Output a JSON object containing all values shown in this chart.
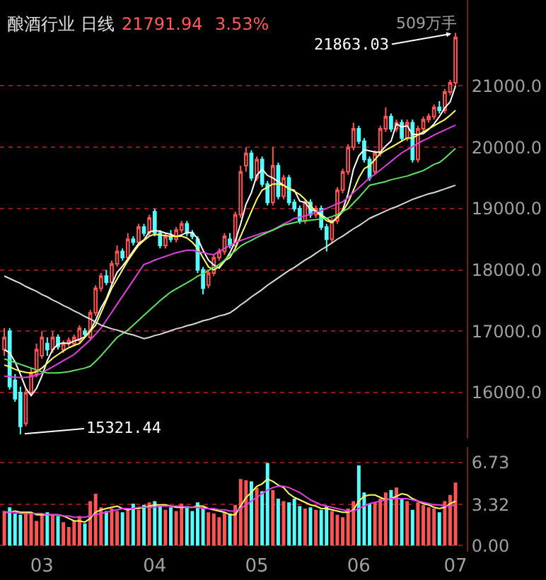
{
  "chart_data": [
    {
      "type": "candlestick",
      "title": "酿酒行业 日线",
      "annotations": [
        "21791.94",
        "3.53%",
        "509万手",
        "21863.03",
        "15321.44"
      ],
      "categories": [
        null,
        null,
        null,
        null,
        null,
        null,
        null,
        "03",
        null,
        null,
        null,
        null,
        null,
        null,
        null,
        null,
        null,
        null,
        null,
        null,
        null,
        null,
        null,
        null,
        null,
        null,
        null,
        null,
        "04",
        null,
        null,
        null,
        null,
        null,
        null,
        null,
        null,
        null,
        null,
        null,
        null,
        null,
        null,
        null,
        null,
        null,
        null,
        "05",
        null,
        null,
        null,
        null,
        null,
        null,
        null,
        null,
        null,
        null,
        null,
        null,
        null,
        null,
        null,
        null,
        null,
        null,
        "06",
        null,
        null,
        null,
        null,
        null,
        null,
        null,
        null,
        null,
        null,
        null,
        null,
        null,
        null,
        null,
        null,
        null,
        "07"
      ],
      "colors": [
        "#ff5454",
        "#54ffff",
        "#54ffff",
        "#54ffff",
        "#ff5454",
        "#ff5454",
        "#ff5454",
        "#ff5454",
        "#54ffff",
        "#ff5454",
        "#54ffff",
        "#ff5454",
        "#ff5454",
        "#ff5454",
        "#ff5454",
        "#54ffff",
        "#ff5454",
        "#ff5454",
        "#ff5454",
        "#54ffff",
        "#ff5454",
        "#ff5454",
        "#54ffff",
        "#ff5454",
        "#54ffff",
        "#ff5454",
        "#54ffff",
        "#ff5454",
        "#54ffff",
        "#54ffff",
        "#ff5454",
        "#54ffff",
        "#ff5454",
        "#ff5454",
        "#54ffff",
        "#54ffff",
        "#54ffff",
        "#54ffff",
        "#ff5454",
        "#ff5454",
        "#ff5454",
        "#ff5454",
        "#54ffff",
        "#ff5454",
        "#ff5454",
        "#ff5454",
        "#54ffff",
        "#ff5454",
        "#54ffff",
        "#54ffff",
        "#ff5454",
        "#54ffff",
        "#ff5454",
        "#54ffff",
        "#54ffff",
        "#54ffff",
        "#ff5454",
        "#54ffff",
        "#ff5454",
        "#54ffff",
        "#54ffff",
        "#ff5454",
        "#ff5454",
        "#ff5454",
        "#ff5454",
        "#ff5454",
        "#54ffff",
        "#54ffff",
        "#54ffff",
        "#ff5454",
        "#ff5454",
        "#ff5454",
        "#54ffff",
        "#ff5454",
        "#54ffff",
        "#ff5454",
        "#54ffff",
        "#ff5454",
        "#ff5454",
        "#ff5454",
        "#ff5454",
        "#54ffff",
        "#ff5454",
        "#ff5454",
        "#ff5454"
      ],
      "ohlc": [
        [
          16700,
          17050,
          16600,
          16900
        ],
        [
          17000,
          17050,
          16050,
          16100
        ],
        [
          16200,
          16300,
          15850,
          15900
        ],
        [
          16000,
          16100,
          15321.44,
          15450
        ],
        [
          15500,
          16050,
          15450,
          16000
        ],
        [
          16000,
          16400,
          15950,
          16300
        ],
        [
          16300,
          16800,
          16250,
          16700
        ],
        [
          16600,
          17000,
          16550,
          16900
        ],
        [
          16800,
          16900,
          16600,
          16700
        ],
        [
          16700,
          17000,
          16650,
          16900
        ],
        [
          16900,
          16950,
          16700,
          16750
        ],
        [
          16700,
          16850,
          16650,
          16800
        ],
        [
          16800,
          16900,
          16750,
          16850
        ],
        [
          16800,
          16950,
          16750,
          16900
        ],
        [
          16850,
          17100,
          16800,
          17050
        ],
        [
          17000,
          17050,
          16900,
          16950
        ],
        [
          16900,
          17350,
          16850,
          17300
        ],
        [
          17300,
          17750,
          17250,
          17700
        ],
        [
          17700,
          17950,
          17650,
          17900
        ],
        [
          17900,
          18000,
          17750,
          17800
        ],
        [
          17800,
          18150,
          17750,
          18100
        ],
        [
          18100,
          18400,
          18050,
          18300
        ],
        [
          18300,
          18350,
          18150,
          18200
        ],
        [
          18200,
          18600,
          18150,
          18500
        ],
        [
          18500,
          18550,
          18400,
          18450
        ],
        [
          18450,
          18750,
          18400,
          18700
        ],
        [
          18700,
          18750,
          18550,
          18600
        ],
        [
          18600,
          18900,
          18550,
          18850
        ],
        [
          18950,
          19000,
          18550,
          18600
        ],
        [
          18600,
          18650,
          18350,
          18400
        ],
        [
          18400,
          18600,
          18350,
          18550
        ],
        [
          18550,
          18650,
          18450,
          18500
        ],
        [
          18500,
          18700,
          18450,
          18650
        ],
        [
          18650,
          18800,
          18600,
          18750
        ],
        [
          18750,
          18800,
          18550,
          18600
        ],
        [
          18600,
          18650,
          18500,
          18550
        ],
        [
          18500,
          18550,
          17950,
          18000
        ],
        [
          18000,
          18050,
          17600,
          17700
        ],
        [
          17750,
          18000,
          17700,
          17950
        ],
        [
          17950,
          18250,
          17900,
          18200
        ],
        [
          18200,
          18350,
          18150,
          18300
        ],
        [
          18300,
          18600,
          18250,
          18550
        ],
        [
          18500,
          18600,
          18350,
          18400
        ],
        [
          18400,
          18950,
          18350,
          18900
        ],
        [
          18900,
          19700,
          18850,
          19600
        ],
        [
          19700,
          20000,
          19600,
          19900
        ],
        [
          19900,
          19950,
          19450,
          19500
        ],
        [
          19500,
          19850,
          19450,
          19800
        ],
        [
          19800,
          19850,
          19350,
          19400
        ],
        [
          19400,
          19450,
          19050,
          19100
        ],
        [
          19100,
          20000,
          19050,
          19700
        ],
        [
          19700,
          19750,
          19150,
          19200
        ],
        [
          19200,
          19550,
          19150,
          19500
        ],
        [
          19500,
          19550,
          19050,
          19100
        ],
        [
          19100,
          19150,
          18950,
          19000
        ],
        [
          19000,
          19050,
          18750,
          18800
        ],
        [
          18800,
          19150,
          18750,
          19100
        ],
        [
          19100,
          19150,
          18850,
          18900
        ],
        [
          18900,
          19050,
          18850,
          19000
        ],
        [
          19000,
          19050,
          18650,
          18700
        ],
        [
          18700,
          18750,
          18300,
          18500
        ],
        [
          18500,
          18850,
          18450,
          18800
        ],
        [
          18800,
          19350,
          18750,
          19300
        ],
        [
          19300,
          19650,
          19250,
          19600
        ],
        [
          19600,
          20050,
          19550,
          20000
        ],
        [
          20000,
          20400,
          19950,
          20300
        ],
        [
          20300,
          20350,
          20050,
          20100
        ],
        [
          20100,
          20150,
          19750,
          19800
        ],
        [
          19800,
          19850,
          19450,
          19500
        ],
        [
          19600,
          19950,
          19550,
          19900
        ],
        [
          19900,
          20350,
          19850,
          20300
        ],
        [
          20300,
          20650,
          20250,
          20500
        ],
        [
          20500,
          20550,
          20250,
          20300
        ],
        [
          20300,
          20450,
          20250,
          20400
        ],
        [
          20400,
          20450,
          20100,
          20150
        ],
        [
          20150,
          20450,
          20100,
          20400
        ],
        [
          20400,
          20450,
          19750,
          19800
        ],
        [
          19800,
          20350,
          19750,
          20300
        ],
        [
          20300,
          20500,
          20250,
          20450
        ],
        [
          20450,
          20550,
          20400,
          20500
        ],
        [
          20500,
          20700,
          20450,
          20650
        ],
        [
          20650,
          20750,
          20550,
          20600
        ],
        [
          20600,
          20950,
          20550,
          20900
        ],
        [
          20900,
          21100,
          20850,
          21050
        ],
        [
          21050,
          21863.03,
          21000,
          21791.94
        ]
      ],
      "series": [
        {
          "type": "line",
          "color": "#ffffff",
          "values": [
            16700,
            16650,
            16500,
            16300,
            16070,
            15950,
            16070,
            16270,
            16520,
            16700,
            16790,
            16810,
            16800,
            16840,
            16870,
            16910,
            17010,
            17180,
            17380,
            17530,
            17760,
            17960,
            18060,
            18180,
            18310,
            18430,
            18490,
            18620,
            18640,
            18630,
            18600,
            18580,
            18540,
            18570,
            18610,
            18610,
            18510,
            18320,
            18160,
            18080,
            18030,
            18140,
            18280,
            18470,
            18750,
            19070,
            19260,
            19540,
            19640,
            19540,
            19500,
            19440,
            19380,
            19320,
            19300,
            19120,
            19100,
            18980,
            18960,
            18900,
            18840,
            18780,
            18860,
            18980,
            19240,
            19640,
            19860,
            19960,
            19940,
            19920,
            19920,
            20020,
            20100,
            20380,
            20330,
            20350,
            20210,
            20210,
            20220,
            20290,
            20380,
            20500,
            20640,
            20740,
            21000
          ]
        },
        {
          "type": "line",
          "color": "#ffff66",
          "values": [
            16450,
            16420,
            16380,
            16350,
            16330,
            16320,
            16340,
            16400,
            16480,
            16560,
            16620,
            16680,
            16730,
            16770,
            16800,
            16900,
            17000,
            17100,
            17300,
            17500,
            17700,
            17850,
            18000,
            18150,
            18280,
            18400,
            18480,
            18550,
            18580,
            18570,
            18560,
            18550,
            18550,
            18550,
            18520,
            18450,
            18350,
            18200,
            18050,
            18000,
            18050,
            18150,
            18200,
            18350,
            18550,
            18750,
            18950,
            19150,
            19300,
            19350,
            19400,
            19400,
            19380,
            19330,
            19280,
            19230,
            19150,
            19050,
            18950,
            18880,
            18800,
            18770,
            18850,
            18950,
            19100,
            19300,
            19500,
            19650,
            19700,
            19800,
            19900,
            19950,
            20000,
            20050,
            20100,
            20150,
            20150,
            20200,
            20250,
            20300,
            20350,
            20400,
            20450,
            20520,
            20600
          ]
        },
        {
          "type": "line",
          "color": "#e040e0",
          "values": [
            16270,
            16260,
            16250,
            16250,
            16250,
            16260,
            16280,
            16320,
            16370,
            16420,
            16470,
            16520,
            16570,
            16620,
            16700,
            16780,
            16860,
            16950,
            17050,
            17180,
            17310,
            17440,
            17570,
            17700,
            17830,
            17960,
            18090,
            18120,
            18160,
            18190,
            18220,
            18250,
            18280,
            18300,
            18320,
            18320,
            18300,
            18280,
            18260,
            18250,
            18300,
            18350,
            18400,
            18440,
            18480,
            18510,
            18540,
            18570,
            18600,
            18620,
            18650,
            18700,
            18750,
            18790,
            18840,
            18860,
            18880,
            18910,
            18940,
            18970,
            19000,
            19040,
            19080,
            19110,
            19180,
            19260,
            19340,
            19420,
            19500,
            19560,
            19630,
            19700,
            19770,
            19840,
            19910,
            19960,
            20010,
            20060,
            20110,
            20150,
            20200,
            20240,
            20280,
            20320,
            20360
          ]
        },
        {
          "type": "line",
          "color": "#60e060",
          "values": [
            16550,
            16520,
            16490,
            16460,
            16430,
            16400,
            16370,
            16340,
            16320,
            16320,
            16320,
            16330,
            16340,
            16360,
            16380,
            16400,
            16430,
            16510,
            16600,
            16700,
            16800,
            16900,
            16960,
            17020,
            17100,
            17180,
            17260,
            17340,
            17420,
            17500,
            17570,
            17640,
            17690,
            17740,
            17790,
            17840,
            17900,
            17940,
            17990,
            18040,
            18090,
            18160,
            18240,
            18310,
            18390,
            18440,
            18480,
            18530,
            18570,
            18610,
            18650,
            18690,
            18730,
            18750,
            18770,
            18790,
            18800,
            18810,
            18820,
            18830,
            18840,
            18870,
            18900,
            18950,
            19000,
            19090,
            19180,
            19280,
            19380,
            19400,
            19420,
            19440,
            19470,
            19490,
            19510,
            19530,
            19560,
            19590,
            19620,
            19670,
            19720,
            19750,
            19820,
            19900,
            19980
          ]
        },
        {
          "type": "line",
          "color": "#d8d8d8",
          "values": [
            17900,
            17860,
            17820,
            17780,
            17730,
            17690,
            17650,
            17600,
            17560,
            17510,
            17470,
            17420,
            17380,
            17330,
            17290,
            17240,
            17200,
            17150,
            17100,
            17070,
            17040,
            17020,
            16990,
            16960,
            16940,
            16910,
            16880,
            16900,
            16930,
            16950,
            16980,
            17010,
            17040,
            17060,
            17090,
            17110,
            17140,
            17170,
            17190,
            17220,
            17250,
            17270,
            17300,
            17360,
            17430,
            17490,
            17560,
            17620,
            17680,
            17750,
            17810,
            17870,
            17930,
            17990,
            18040,
            18100,
            18160,
            18210,
            18270,
            18330,
            18380,
            18440,
            18500,
            18550,
            18610,
            18670,
            18720,
            18780,
            18840,
            18880,
            18920,
            18960,
            19000,
            19030,
            19070,
            19110,
            19150,
            19180,
            19210,
            19240,
            19260,
            19290,
            19320,
            19350,
            19380
          ]
        }
      ],
      "ylim": [
        15250,
        22400
      ],
      "yticks": [
        {
          "value": 16000,
          "label": "16000.0"
        },
        {
          "value": 17000,
          "label": "17000.0"
        },
        {
          "value": 18000,
          "label": "18000.0"
        },
        {
          "value": 19000,
          "label": "19000.0"
        },
        {
          "value": 20000,
          "label": "20000.0"
        },
        {
          "value": 21000,
          "label": "21000.0"
        }
      ],
      "grid": "y",
      "tick_labels": "y"
    },
    {
      "type": "bar",
      "categories": [
        null,
        null,
        null,
        null,
        null,
        null,
        null,
        "03",
        null,
        null,
        null,
        null,
        null,
        null,
        null,
        null,
        null,
        null,
        null,
        null,
        null,
        null,
        null,
        null,
        null,
        null,
        null,
        null,
        "04",
        null,
        null,
        null,
        null,
        null,
        null,
        null,
        null,
        null,
        null,
        null,
        null,
        null,
        null,
        null,
        null,
        null,
        null,
        "05",
        null,
        null,
        null,
        null,
        null,
        null,
        null,
        null,
        null,
        null,
        null,
        null,
        null,
        null,
        null,
        null,
        null,
        null,
        "06",
        null,
        null,
        null,
        null,
        null,
        null,
        null,
        null,
        null,
        null,
        null,
        null,
        null,
        null,
        null,
        null,
        null,
        "07"
      ],
      "series": [
        {
          "type": "bar",
          "colors": [
            "#ff5454",
            "#54ffff",
            "#54ffff",
            "#54ffff",
            "#ff5454",
            "#ff5454",
            "#ff5454",
            "#ff5454",
            "#54ffff",
            "#ff5454",
            "#54ffff",
            "#ff5454",
            "#ff5454",
            "#ff5454",
            "#ff5454",
            "#54ffff",
            "#ff5454",
            "#ff5454",
            "#ff5454",
            "#54ffff",
            "#ff5454",
            "#ff5454",
            "#54ffff",
            "#ff5454",
            "#54ffff",
            "#ff5454",
            "#54ffff",
            "#ff5454",
            "#54ffff",
            "#54ffff",
            "#ff5454",
            "#54ffff",
            "#ff5454",
            "#ff5454",
            "#54ffff",
            "#54ffff",
            "#54ffff",
            "#54ffff",
            "#ff5454",
            "#ff5454",
            "#ff5454",
            "#ff5454",
            "#54ffff",
            "#ff5454",
            "#ff5454",
            "#ff5454",
            "#54ffff",
            "#ff5454",
            "#54ffff",
            "#54ffff",
            "#ff5454",
            "#54ffff",
            "#ff5454",
            "#54ffff",
            "#54ffff",
            "#54ffff",
            "#ff5454",
            "#54ffff",
            "#ff5454",
            "#54ffff",
            "#54ffff",
            "#ff5454",
            "#ff5454",
            "#ff5454",
            "#ff5454",
            "#ff5454",
            "#54ffff",
            "#54ffff",
            "#54ffff",
            "#ff5454",
            "#ff5454",
            "#ff5454",
            "#54ffff",
            "#ff5454",
            "#54ffff",
            "#ff5454",
            "#54ffff",
            "#ff5454",
            "#ff5454",
            "#ff5454",
            "#ff5454",
            "#54ffff",
            "#ff5454",
            "#ff5454",
            "#ff5454"
          ],
          "values": [
            2.8,
            3.1,
            2.6,
            2.5,
            2.7,
            2.6,
            2.0,
            2.6,
            2.7,
            2.5,
            2.4,
            1.9,
            1.5,
            2.0,
            2.4,
            1.8,
            3.6,
            4.2,
            3.1,
            2.8,
            3.0,
            2.8,
            2.7,
            3.0,
            3.4,
            2.9,
            3.3,
            3.5,
            3.6,
            3.2,
            2.9,
            3.1,
            2.8,
            3.4,
            3.2,
            2.8,
            3.5,
            3.1,
            2.7,
            2.6,
            2.3,
            2.7,
            2.6,
            3.3,
            5.4,
            5.3,
            5.2,
            4.7,
            4.4,
            6.7,
            4.5,
            3.8,
            3.6,
            3.5,
            3.8,
            3.2,
            3.0,
            3.1,
            2.9,
            2.9,
            3.2,
            2.8,
            2.5,
            2.3,
            3.0,
            3.6,
            6.5,
            4.3,
            3.4,
            3.5,
            3.8,
            4.3,
            4.5,
            4.7,
            3.8,
            3.6,
            2.9,
            3.5,
            3.3,
            3.1,
            3.0,
            2.7,
            3.6,
            4.1,
            5.1
          ]
        },
        {
          "type": "line",
          "color": "#ffff66",
          "values": [
            2.7,
            2.7,
            2.8,
            2.7,
            2.7,
            2.7,
            2.5,
            2.5,
            2.5,
            2.5,
            2.5,
            2.4,
            2.2,
            2.0,
            2.0,
            1.9,
            2.2,
            2.7,
            2.9,
            3.0,
            3.1,
            3.2,
            3.0,
            2.9,
            3.0,
            3.0,
            3.1,
            3.2,
            3.3,
            3.3,
            3.3,
            3.2,
            3.1,
            3.1,
            3.1,
            3.1,
            3.2,
            3.2,
            3.0,
            2.9,
            2.8,
            2.7,
            2.5,
            2.5,
            3.2,
            3.9,
            4.3,
            4.8,
            5.0,
            5.4,
            5.2,
            4.9,
            4.7,
            4.2,
            3.9,
            3.7,
            3.5,
            3.3,
            3.2,
            3.0,
            3.0,
            2.9,
            2.8,
            2.7,
            2.7,
            2.9,
            3.6,
            4.0,
            4.1,
            4.1,
            3.9,
            3.7,
            3.8,
            4.0,
            4.2,
            4.1,
            3.8,
            3.6,
            3.4,
            3.3,
            3.1,
            3.0,
            3.1,
            3.4,
            3.6
          ]
        },
        {
          "type": "line",
          "color": "#e040e0",
          "values": [
            2.7,
            2.7,
            2.7,
            2.6,
            2.6,
            2.6,
            2.6,
            2.6,
            2.5,
            2.5,
            2.5,
            2.4,
            2.4,
            2.3,
            2.3,
            2.3,
            2.4,
            2.5,
            2.6,
            2.7,
            2.8,
            2.9,
            3.0,
            3.0,
            3.0,
            3.1,
            3.1,
            3.1,
            3.1,
            3.2,
            3.2,
            3.2,
            3.2,
            3.2,
            3.1,
            3.1,
            3.1,
            3.0,
            3.0,
            3.0,
            2.9,
            2.9,
            2.8,
            2.8,
            3.0,
            3.3,
            3.6,
            3.9,
            4.2,
            4.5,
            4.7,
            4.8,
            4.8,
            4.7,
            4.5,
            4.3,
            4.0,
            3.7,
            3.5,
            3.3,
            3.2,
            3.1,
            3.0,
            2.9,
            2.8,
            2.8,
            3.0,
            3.2,
            3.4,
            3.5,
            3.6,
            3.7,
            3.8,
            3.8,
            3.8,
            3.8,
            3.7,
            3.6,
            3.5,
            3.4,
            3.3,
            3.3,
            3.2,
            3.2,
            3.3
          ]
        }
      ],
      "ylim": [
        -0.5,
        8
      ],
      "yticks": [
        {
          "value": 0,
          "label": "0.00"
        },
        {
          "value": 3.32,
          "label": "3.32"
        },
        {
          "value": 6.73,
          "label": "6.73"
        }
      ],
      "grid": "y"
    }
  ]
}
